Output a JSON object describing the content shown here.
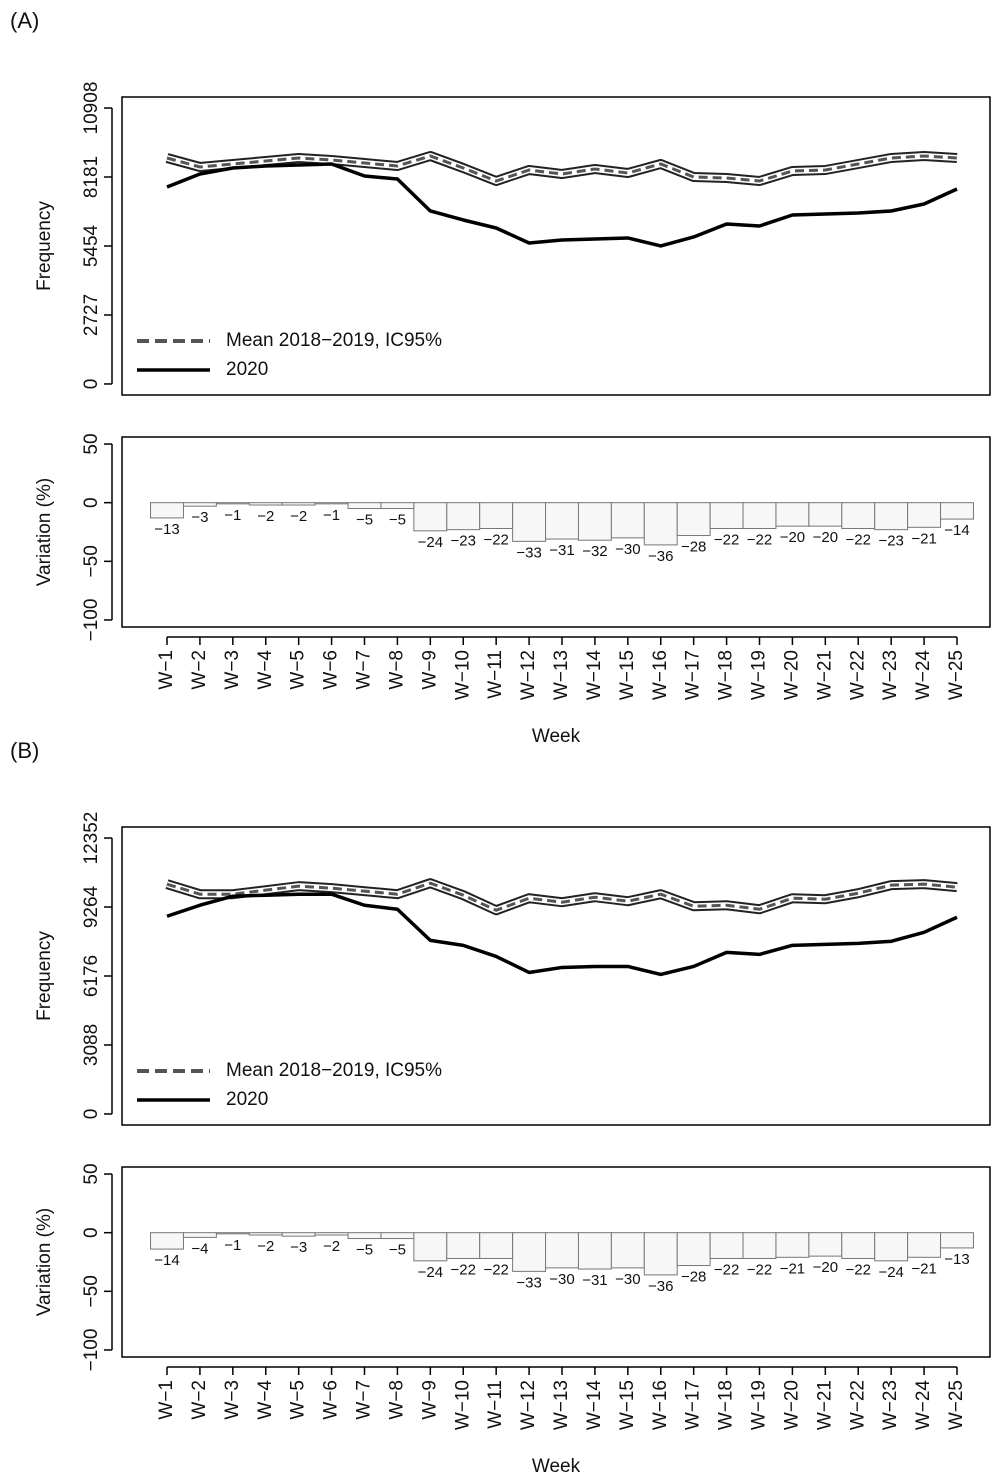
{
  "chart_data": [
    {
      "type": "line",
      "label": "(A)",
      "ylabel": "Frequency",
      "ylim": [
        -436,
        11344
      ],
      "yticks": [
        0,
        2727,
        5454,
        8181,
        10908
      ],
      "legend": "bottom-left",
      "series": [
        {
          "name": "Mean 2018−2019, IC95%",
          "color": "#555555",
          "dashed": true,
          "values": [
            8933,
            8577,
            8696,
            8814,
            8933,
            8854,
            8735,
            8617,
            9012,
            8537,
            8024,
            8458,
            8300,
            8498,
            8340,
            8696,
            8182,
            8142,
            8024,
            8419,
            8458,
            8696,
            8933,
            9012,
            8933
          ]
        },
        {
          "name": "2020",
          "color": "#000000",
          "dashed": false,
          "values": [
            7787,
            8300,
            8537,
            8617,
            8656,
            8696,
            8221,
            8103,
            6838,
            6482,
            6166,
            5573,
            5692,
            5731,
            5771,
            5455,
            5810,
            6324,
            6245,
            6680,
            6719,
            6759,
            6838,
            7115,
            7708
          ]
        }
      ]
    },
    {
      "type": "bar",
      "ylabel": "Variation (%)",
      "xlabel": "Week",
      "color": "#f7f7f7",
      "ylim": [
        -106,
        56
      ],
      "yticks": [
        {
          "value": -100,
          "label": "−100"
        },
        {
          "value": -50,
          "label": "−50"
        },
        0,
        50
      ],
      "categories": [
        "W−1",
        "W−2",
        "W−3",
        "W−4",
        "W−5",
        "W−6",
        "W−7",
        "W−8",
        "W−9",
        "W−10",
        "W−11",
        "W−12",
        "W−13",
        "W−14",
        "W−15",
        "W−16",
        "W−17",
        "W−18",
        "W−19",
        "W−20",
        "W−21",
        "W−22",
        "W−23",
        "W−24",
        "W−25"
      ],
      "values": [
        -13,
        -3,
        -1,
        -2,
        -2,
        -1,
        -5,
        -5,
        -24,
        -23,
        -22,
        -33,
        -31,
        -32,
        -30,
        -36,
        -28,
        -22,
        -22,
        -20,
        -20,
        -22,
        -23,
        -21,
        -14
      ],
      "value_labels": [
        "−13",
        "−3",
        "−1",
        "−2",
        "−2",
        "−1",
        "−5",
        "−5",
        "−24",
        "−23",
        "−22",
        "−33",
        "−31",
        "−32",
        "−30",
        "−36",
        "−28",
        "−22",
        "−22",
        "−20",
        "−20",
        "−22",
        "−23",
        "−21",
        "−14"
      ]
    },
    {
      "type": "line",
      "label": "(B)",
      "ylabel": "Frequency",
      "ylim": [
        -494,
        12846
      ],
      "yticks": [
        0,
        3088,
        6176,
        9264,
        12352
      ],
      "legend": "bottom-left",
      "series": [
        {
          "name": "Mean 2018−2019, IC95%",
          "color": "#555555",
          "dashed": true,
          "values": [
            10288,
            9838,
            9838,
            10018,
            10198,
            10108,
            9973,
            9838,
            10332,
            9793,
            9119,
            9658,
            9479,
            9703,
            9524,
            9838,
            9299,
            9344,
            9164,
            9658,
            9613,
            9883,
            10243,
            10288,
            10153
          ]
        },
        {
          "name": "2020",
          "color": "#000000",
          "dashed": false,
          "values": [
            8850,
            9344,
            9748,
            9793,
            9838,
            9838,
            9344,
            9164,
            7772,
            7547,
            7053,
            6334,
            6559,
            6604,
            6604,
            6244,
            6604,
            7233,
            7143,
            7547,
            7592,
            7637,
            7727,
            8131,
            8805
          ]
        }
      ]
    },
    {
      "type": "bar",
      "ylabel": "Variation (%)",
      "xlabel": "Week",
      "color": "#f7f7f7",
      "ylim": [
        -106,
        56
      ],
      "yticks": [
        {
          "value": -100,
          "label": "−100"
        },
        {
          "value": -50,
          "label": "−50"
        },
        0,
        50
      ],
      "categories": [
        "W−1",
        "W−2",
        "W−3",
        "W−4",
        "W−5",
        "W−6",
        "W−7",
        "W−8",
        "W−9",
        "W−10",
        "W−11",
        "W−12",
        "W−13",
        "W−14",
        "W−15",
        "W−16",
        "W−17",
        "W−18",
        "W−19",
        "W−20",
        "W−21",
        "W−22",
        "W−23",
        "W−24",
        "W−25"
      ],
      "values": [
        -14,
        -4,
        -1,
        -2,
        -3,
        -2,
        -5,
        -5,
        -24,
        -22,
        -22,
        -33,
        -30,
        -31,
        -30,
        -36,
        -28,
        -22,
        -22,
        -21,
        -20,
        -22,
        -24,
        -21,
        -13
      ],
      "value_labels": [
        "−14",
        "−4",
        "−1",
        "−2",
        "−3",
        "−2",
        "−5",
        "−5",
        "−24",
        "−22",
        "−22",
        "−33",
        "−30",
        "−31",
        "−30",
        "−36",
        "−28",
        "−22",
        "−22",
        "−21",
        "−20",
        "−22",
        "−24",
        "−21",
        "−13"
      ]
    }
  ]
}
